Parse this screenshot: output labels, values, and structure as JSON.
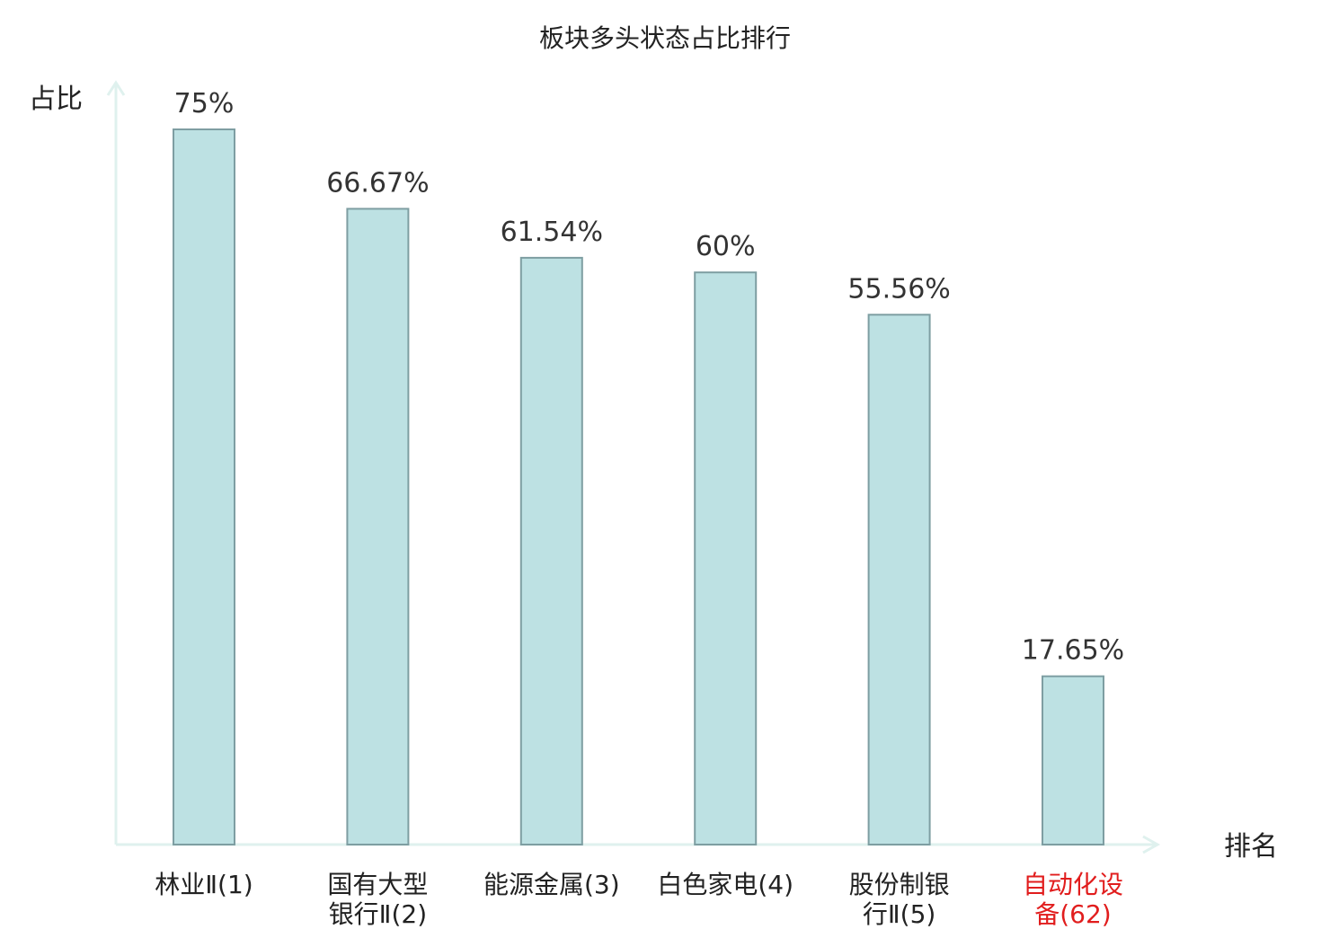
{
  "chart_data": {
    "type": "bar",
    "title": "板块多头状态占比排行",
    "ylabel": "占比",
    "xlabel": "排名",
    "categories": [
      {
        "lines": [
          "林业Ⅱ(1)"
        ],
        "highlight": false
      },
      {
        "lines": [
          "国有大型",
          "银行Ⅱ(2)"
        ],
        "highlight": false
      },
      {
        "lines": [
          "能源金属(3)"
        ],
        "highlight": false
      },
      {
        "lines": [
          "白色家电(4)"
        ],
        "highlight": false
      },
      {
        "lines": [
          "股份制银",
          "行Ⅱ(5)"
        ],
        "highlight": false
      },
      {
        "lines": [
          "自动化设",
          "备(62)"
        ],
        "highlight": true
      }
    ],
    "values": [
      75,
      66.67,
      61.54,
      60,
      55.56,
      17.65
    ],
    "value_labels": [
      "75%",
      "66.67%",
      "61.54%",
      "60%",
      "55.56%",
      "17.65%"
    ],
    "ylim": [
      0,
      75
    ],
    "grid": false,
    "colors": {
      "bar_fill": "#bde1e3",
      "bar_stroke": "#7e9ea2",
      "axis": "#dff1ee",
      "text": "#222222",
      "highlight_text": "#e11d1d",
      "value_text": "#333333"
    }
  }
}
